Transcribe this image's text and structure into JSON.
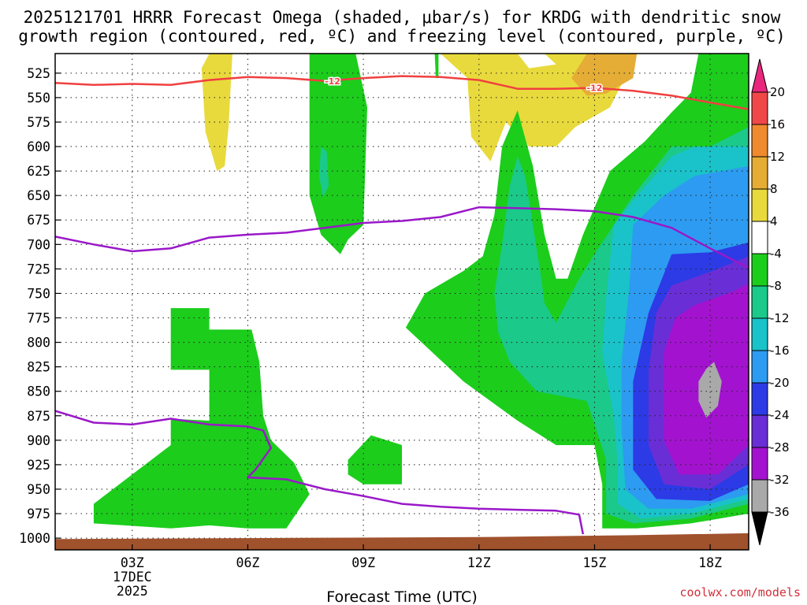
{
  "title": {
    "line1": "2025121701 HRRR Forecast Omega (shaded, μbar/s) for KRDG with dendritic snow",
    "line2": "growth region (contoured, red, ºC) and freezing level (contoured, purple, ºC)"
  },
  "credit": "coolwx.com/models",
  "credit_color": "#d0303a",
  "chart_data": {
    "type": "heatmap",
    "title": "2025121701 HRRR Forecast Omega (shaded, μbar/s) for KRDG with dendritic snow growth region (contoured, red, ºC) and freezing level (contoured, purple, ºC)",
    "xlabel": "Forecast Time (UTC)",
    "ylabel": "",
    "x_range_hours": [
      1,
      19
    ],
    "y_range_hpa": [
      505,
      1012
    ],
    "y_reversed": true,
    "grid": true,
    "y_ticks": [
      525,
      550,
      575,
      600,
      625,
      650,
      675,
      700,
      725,
      750,
      775,
      800,
      825,
      850,
      875,
      900,
      925,
      950,
      975,
      1000
    ],
    "x_ticks": [
      {
        "hour": 3,
        "label": "03Z",
        "date": "17DEC",
        "year": "2025"
      },
      {
        "hour": 6,
        "label": "06Z"
      },
      {
        "hour": 9,
        "label": "09Z"
      },
      {
        "hour": 12,
        "label": "12Z"
      },
      {
        "hour": 15,
        "label": "15Z"
      },
      {
        "hour": 18,
        "label": "18Z"
      }
    ],
    "colorbar": {
      "ticks": [
        20,
        16,
        12,
        8,
        4,
        -4,
        -8,
        -12,
        -16,
        -20,
        -24,
        -28,
        -32,
        -36
      ],
      "bins": [
        {
          "from": 16,
          "to": 20,
          "color": "#f04848"
        },
        {
          "from": 12,
          "to": 16,
          "color": "#ef8a2f"
        },
        {
          "from": 8,
          "to": 12,
          "color": "#e5ad35"
        },
        {
          "from": 4,
          "to": 8,
          "color": "#e8da3c"
        },
        {
          "from": -4,
          "to": 4,
          "color": "#ffffff"
        },
        {
          "from": -8,
          "to": -4,
          "color": "#1ccd1c"
        },
        {
          "from": -12,
          "to": -8,
          "color": "#1bc98a"
        },
        {
          "from": -16,
          "to": -12,
          "color": "#19c3c9"
        },
        {
          "from": -20,
          "to": -16,
          "color": "#2d9bf1"
        },
        {
          "from": -24,
          "to": -20,
          "color": "#2c3be6"
        },
        {
          "from": -28,
          "to": -24,
          "color": "#6a2ed6"
        },
        {
          "from": -32,
          "to": -28,
          "color": "#a313cf"
        },
        {
          "from": -36,
          "to": -32,
          "color": "#a9a9a9"
        }
      ],
      "over_color": "#e8277d",
      "under_color": "#000000"
    },
    "contours": {
      "dgz_label": "-12",
      "dgz_color": "#f04040",
      "dgz_minus12": [
        [
          1.0,
          535
        ],
        [
          2.0,
          537
        ],
        [
          3.0,
          536
        ],
        [
          4.0,
          537
        ],
        [
          5.0,
          532
        ],
        [
          6.0,
          529
        ],
        [
          7.0,
          530
        ],
        [
          8.0,
          533
        ],
        [
          9.0,
          530
        ],
        [
          10.0,
          528
        ],
        [
          11.0,
          529
        ],
        [
          12.0,
          532
        ],
        [
          13.0,
          541
        ],
        [
          14.0,
          541
        ],
        [
          15.0,
          540
        ],
        [
          16.0,
          543
        ],
        [
          17.0,
          548
        ],
        [
          18.0,
          555
        ],
        [
          19.0,
          562
        ]
      ],
      "freezing_color": "#9a18c8",
      "freezing_upper": [
        [
          1.0,
          692
        ],
        [
          2.0,
          700
        ],
        [
          3.0,
          707
        ],
        [
          4.0,
          704
        ],
        [
          5.0,
          693
        ],
        [
          6.0,
          690
        ],
        [
          7.0,
          688
        ],
        [
          8.0,
          683
        ],
        [
          9.0,
          678
        ],
        [
          10.0,
          676
        ],
        [
          11.0,
          672
        ],
        [
          12.0,
          662
        ],
        [
          13.0,
          663
        ],
        [
          14.0,
          664
        ],
        [
          15.0,
          666
        ],
        [
          16.0,
          672
        ],
        [
          17.0,
          683
        ],
        [
          18.0,
          704
        ],
        [
          19.0,
          724
        ]
      ],
      "freezing_lower": [
        [
          1.0,
          870
        ],
        [
          2.0,
          882
        ],
        [
          3.0,
          884
        ],
        [
          4.0,
          878
        ],
        [
          5.0,
          884
        ],
        [
          6.0,
          886
        ],
        [
          6.4,
          890
        ],
        [
          6.6,
          908
        ],
        [
          6.2,
          930
        ],
        [
          6.0,
          938
        ],
        [
          7.0,
          940
        ],
        [
          8.0,
          950
        ],
        [
          9.0,
          957
        ],
        [
          10.0,
          965
        ],
        [
          11.0,
          968
        ],
        [
          12.0,
          970
        ],
        [
          13.0,
          971
        ],
        [
          14.0,
          972
        ],
        [
          14.6,
          976
        ],
        [
          14.7,
          996
        ]
      ]
    },
    "terrain_color": "#a0522d",
    "shaded_regions": [
      {
        "omega": 6,
        "level": 4,
        "points": [
          [
            5.0,
            505
          ],
          [
            5.6,
            505
          ],
          [
            5.5,
            580
          ],
          [
            5.4,
            620
          ],
          [
            5.2,
            625
          ],
          [
            4.9,
            585
          ],
          [
            4.8,
            520
          ]
        ]
      },
      {
        "omega": 6,
        "level": 4,
        "points": [
          [
            11.0,
            505
          ],
          [
            13.0,
            505
          ],
          [
            13.3,
            520
          ],
          [
            14.0,
            516
          ],
          [
            13.7,
            505
          ],
          [
            16.1,
            505
          ],
          [
            15.4,
            560
          ],
          [
            14.5,
            580
          ],
          [
            14.0,
            600
          ],
          [
            13.3,
            600
          ],
          [
            12.7,
            575
          ],
          [
            12.3,
            615
          ],
          [
            11.8,
            590
          ],
          [
            11.7,
            530
          ]
        ]
      },
      {
        "omega": 10,
        "level": 8,
        "points": [
          [
            14.8,
            505
          ],
          [
            16.1,
            505
          ],
          [
            16.0,
            530
          ],
          [
            15.3,
            546
          ],
          [
            14.8,
            548
          ],
          [
            14.4,
            530
          ]
        ]
      },
      {
        "omega": -6,
        "level": -4,
        "points": [
          [
            7.6,
            505
          ],
          [
            8.8,
            505
          ],
          [
            9.1,
            560
          ],
          [
            9.0,
            680
          ],
          [
            8.6,
            695
          ],
          [
            8.4,
            710
          ],
          [
            7.9,
            690
          ],
          [
            7.6,
            650
          ],
          [
            7.6,
            580
          ]
        ]
      },
      {
        "omega": -6,
        "level": -4,
        "points": [
          [
            10.85,
            505
          ],
          [
            10.95,
            505
          ],
          [
            10.95,
            530
          ],
          [
            10.88,
            530
          ]
        ]
      },
      {
        "omega": -6,
        "level": -4,
        "points": [
          [
            17.7,
            505
          ],
          [
            19,
            505
          ],
          [
            19,
            975
          ],
          [
            17.5,
            985
          ],
          [
            16.1,
            990
          ],
          [
            15.2,
            990
          ],
          [
            15.2,
            945
          ],
          [
            15.0,
            905
          ],
          [
            14.0,
            905
          ],
          [
            13.0,
            880
          ],
          [
            11.6,
            840
          ],
          [
            10.1,
            785
          ],
          [
            10.6,
            750
          ],
          [
            11.6,
            727
          ],
          [
            12.1,
            712
          ],
          [
            12.4,
            670
          ],
          [
            12.6,
            600
          ],
          [
            13.0,
            563
          ],
          [
            13.4,
            620
          ],
          [
            13.7,
            690
          ],
          [
            14.0,
            735
          ],
          [
            14.3,
            735
          ],
          [
            14.7,
            690
          ],
          [
            15.4,
            625
          ],
          [
            16.3,
            595
          ],
          [
            17.0,
            565
          ],
          [
            17.5,
            545
          ]
        ]
      },
      {
        "omega": -6,
        "level": -4,
        "points": [
          [
            4.0,
            765
          ],
          [
            5.0,
            765
          ],
          [
            5.0,
            787
          ],
          [
            6.1,
            787
          ],
          [
            6.3,
            820
          ],
          [
            6.4,
            875
          ],
          [
            6.6,
            900
          ],
          [
            7.2,
            923
          ],
          [
            7.6,
            955
          ],
          [
            7.0,
            990
          ],
          [
            6.0,
            990
          ],
          [
            5.0,
            987
          ],
          [
            4.0,
            990
          ],
          [
            2.0,
            985
          ],
          [
            2.0,
            965
          ],
          [
            3.0,
            935
          ],
          [
            4.0,
            905
          ],
          [
            4.0,
            878
          ],
          [
            5.0,
            880
          ],
          [
            5.0,
            828
          ],
          [
            4.0,
            828
          ]
        ]
      },
      {
        "omega": -6,
        "level": -4,
        "points": [
          [
            8.6,
            920
          ],
          [
            9.2,
            895
          ],
          [
            10.0,
            905
          ],
          [
            10.0,
            945
          ],
          [
            9.0,
            945
          ],
          [
            8.6,
            935
          ]
        ]
      },
      {
        "omega": -10,
        "level": -8,
        "points": [
          [
            7.9,
            600
          ],
          [
            8.05,
            605
          ],
          [
            8.1,
            640
          ],
          [
            7.95,
            652
          ],
          [
            7.85,
            630
          ]
        ]
      },
      {
        "omega": -10,
        "level": -8,
        "points": [
          [
            12.6,
            700
          ],
          [
            12.8,
            640
          ],
          [
            13.0,
            610
          ],
          [
            13.2,
            630
          ],
          [
            13.6,
            730
          ],
          [
            13.7,
            760
          ],
          [
            14.0,
            780
          ],
          [
            14.6,
            735
          ],
          [
            15.0,
            710
          ],
          [
            16.0,
            650
          ],
          [
            17.0,
            600
          ],
          [
            18.0,
            600
          ],
          [
            19,
            580
          ],
          [
            19,
            965
          ],
          [
            17.5,
            980
          ],
          [
            16.0,
            985
          ],
          [
            15.3,
            975
          ],
          [
            15.3,
            920
          ],
          [
            14.8,
            860
          ],
          [
            13.5,
            850
          ],
          [
            12.8,
            820
          ],
          [
            12.5,
            790
          ],
          [
            12.4,
            750
          ]
        ]
      },
      {
        "omega": -14,
        "level": -12,
        "points": [
          [
            15.5,
            680
          ],
          [
            16.0,
            655
          ],
          [
            17.0,
            610
          ],
          [
            17.6,
            600
          ],
          [
            19,
            600
          ],
          [
            19,
            960
          ],
          [
            17.5,
            975
          ],
          [
            16.2,
            980
          ],
          [
            15.6,
            965
          ],
          [
            15.6,
            925
          ],
          [
            15.5,
            875
          ],
          [
            15.2,
            810
          ],
          [
            15.3,
            755
          ]
        ]
      },
      {
        "omega": -18,
        "level": -16,
        "points": [
          [
            16.0,
            680
          ],
          [
            16.8,
            650
          ],
          [
            17.6,
            630
          ],
          [
            19,
            620
          ],
          [
            19,
            955
          ],
          [
            17.5,
            970
          ],
          [
            16.4,
            970
          ],
          [
            15.8,
            950
          ],
          [
            15.7,
            890
          ],
          [
            15.7,
            820
          ],
          [
            15.9,
            745
          ]
        ]
      },
      {
        "omega": -22,
        "level": -20,
        "points": [
          [
            17.0,
            710
          ],
          [
            18.0,
            708
          ],
          [
            19,
            698
          ],
          [
            19,
            945
          ],
          [
            18.0,
            962
          ],
          [
            16.6,
            960
          ],
          [
            16.0,
            930
          ],
          [
            16.0,
            840
          ],
          [
            16.4,
            770
          ]
        ]
      },
      {
        "omega": -26,
        "level": -24,
        "points": [
          [
            17.0,
            742
          ],
          [
            18.0,
            728
          ],
          [
            19,
            712
          ],
          [
            19,
            925
          ],
          [
            18.0,
            950
          ],
          [
            16.8,
            945
          ],
          [
            16.4,
            905
          ],
          [
            16.4,
            830
          ],
          [
            16.6,
            770
          ]
        ]
      },
      {
        "omega": -30,
        "level": -28,
        "points": [
          [
            17.6,
            762
          ],
          [
            18.6,
            748
          ],
          [
            19,
            740
          ],
          [
            19,
            905
          ],
          [
            18.2,
            935
          ],
          [
            17.2,
            935
          ],
          [
            16.8,
            900
          ],
          [
            16.8,
            810
          ],
          [
            17.1,
            775
          ]
        ]
      },
      {
        "omega": -34,
        "level": -32,
        "points": [
          [
            17.9,
            827
          ],
          [
            18.1,
            820
          ],
          [
            18.3,
            840
          ],
          [
            18.2,
            865
          ],
          [
            17.9,
            877
          ],
          [
            17.7,
            860
          ],
          [
            17.7,
            840
          ]
        ]
      }
    ]
  }
}
